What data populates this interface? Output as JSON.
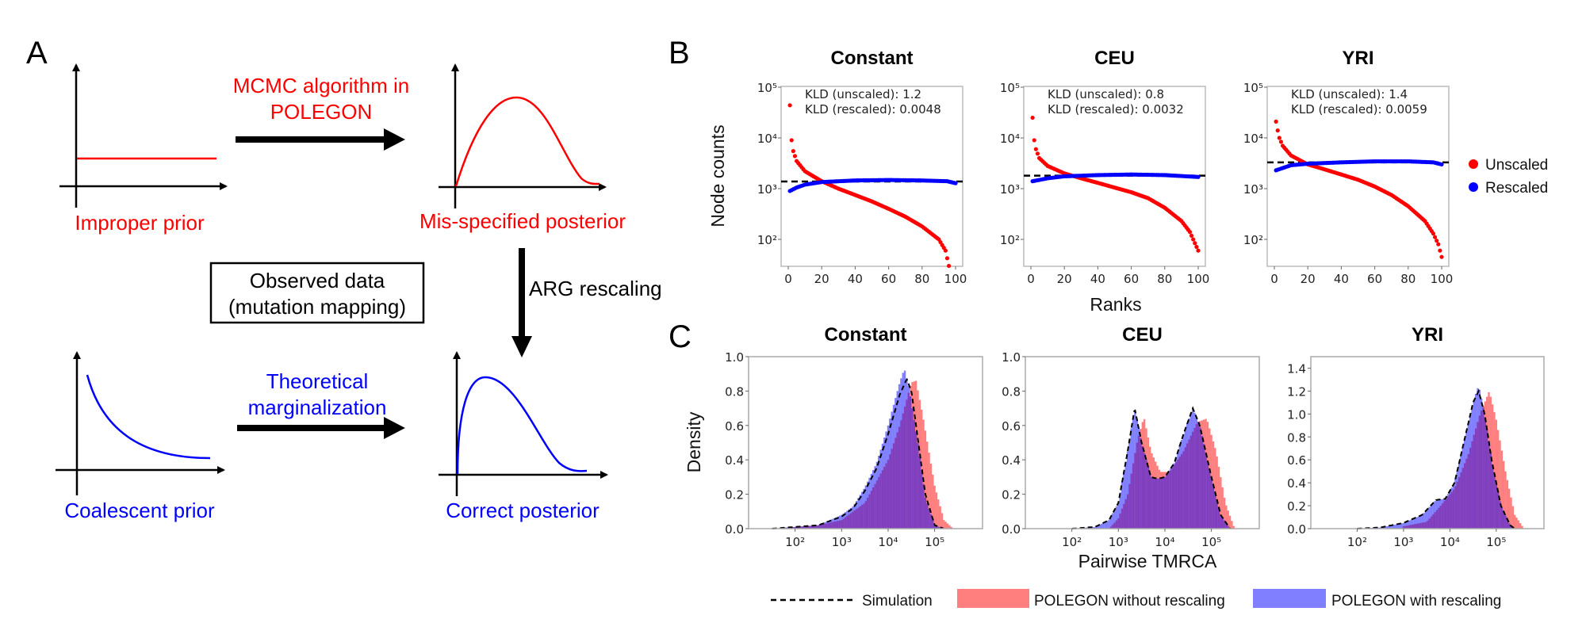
{
  "panel_labels": {
    "a": "A",
    "b": "B",
    "c": "C"
  },
  "colors": {
    "unscaled": "#ff0000",
    "rescaled": "#0000ff",
    "hist_unscaled": "#ff7f7f",
    "hist_rescaled": "#7f7fff",
    "simulation": "#000000"
  },
  "panel_a": {
    "improper_prior": "Improper prior",
    "mis_specified_posterior": "Mis-specified posterior",
    "coalescent_prior": "Coalescent prior",
    "correct_posterior": "Correct posterior",
    "mcmc_line1": "MCMC algorithm in",
    "mcmc_line2": "POLEGON",
    "theoretical_line1": "Theoretical",
    "theoretical_line2": "marginalization",
    "observed_line1": "Observed data",
    "observed_line2": "(mutation mapping)",
    "arg_rescaling": "ARG rescaling"
  },
  "panel_b": {
    "ylabel": "Node counts",
    "xlabel": "Ranks",
    "legend": [
      {
        "label": "Unscaled",
        "color": "#ff0000"
      },
      {
        "label": "Rescaled",
        "color": "#0000ff"
      }
    ]
  },
  "panel_c": {
    "ylabel": "Density",
    "xlabel": "Pairwise TMRCA",
    "legend": {
      "simulation": "Simulation",
      "without": "POLEGON without rescaling",
      "with": "POLEGON with rescaling"
    }
  },
  "chart_data": [
    {
      "type": "scatter",
      "title": "Constant",
      "yscale": "log",
      "xlim": [
        0,
        100
      ],
      "ylim": [
        30,
        100000
      ],
      "xticks": [
        "0",
        "20",
        "40",
        "60",
        "80",
        "100"
      ],
      "yticks": [
        "10²",
        "10³",
        "10⁴",
        "10⁵"
      ],
      "annotation": [
        "KLD (unscaled): 1.2",
        "KLD (rescaled): 0.0048"
      ],
      "reference_line": 1380,
      "series": [
        {
          "name": "Unscaled",
          "points": [
            [
              1,
              44000
            ],
            [
              2,
              9000
            ],
            [
              3,
              5500
            ],
            [
              5,
              3500
            ],
            [
              10,
              2200
            ],
            [
              20,
              1400
            ],
            [
              30,
              1000
            ],
            [
              40,
              750
            ],
            [
              50,
              560
            ],
            [
              60,
              400
            ],
            [
              70,
              280
            ],
            [
              80,
              180
            ],
            [
              90,
              100
            ],
            [
              94,
              60
            ],
            [
              96,
              30
            ]
          ]
        },
        {
          "name": "Rescaled",
          "points": [
            [
              1,
              900
            ],
            [
              5,
              1050
            ],
            [
              10,
              1200
            ],
            [
              20,
              1350
            ],
            [
              40,
              1450
            ],
            [
              60,
              1480
            ],
            [
              80,
              1450
            ],
            [
              95,
              1400
            ],
            [
              100,
              1280
            ]
          ]
        }
      ]
    },
    {
      "type": "scatter",
      "title": "CEU",
      "yscale": "log",
      "xlim": [
        0,
        100
      ],
      "ylim": [
        30,
        100000
      ],
      "xticks": [
        "0",
        "20",
        "40",
        "60",
        "80",
        "100"
      ],
      "yticks": [
        "10²",
        "10³",
        "10⁴",
        "10⁵"
      ],
      "annotation": [
        "KLD (unscaled): 0.8",
        "KLD (rescaled): 0.0032"
      ],
      "reference_line": 1800,
      "series": [
        {
          "name": "Unscaled",
          "points": [
            [
              1,
              25000
            ],
            [
              2,
              9000
            ],
            [
              3,
              6000
            ],
            [
              5,
              4000
            ],
            [
              10,
              2800
            ],
            [
              20,
              2000
            ],
            [
              30,
              1600
            ],
            [
              40,
              1300
            ],
            [
              50,
              1050
            ],
            [
              60,
              850
            ],
            [
              70,
              650
            ],
            [
              80,
              420
            ],
            [
              90,
              230
            ],
            [
              95,
              140
            ],
            [
              100,
              60
            ]
          ]
        },
        {
          "name": "Rescaled",
          "points": [
            [
              1,
              1400
            ],
            [
              10,
              1600
            ],
            [
              20,
              1750
            ],
            [
              40,
              1850
            ],
            [
              60,
              1900
            ],
            [
              80,
              1850
            ],
            [
              100,
              1700
            ]
          ]
        }
      ]
    },
    {
      "type": "scatter",
      "title": "YRI",
      "yscale": "log",
      "xlim": [
        0,
        100
      ],
      "ylim": [
        30,
        100000
      ],
      "xticks": [
        "0",
        "20",
        "40",
        "60",
        "80",
        "100"
      ],
      "yticks": [
        "10²",
        "10³",
        "10⁴",
        "10⁵"
      ],
      "annotation": [
        "KLD (unscaled): 1.4",
        "KLD (rescaled): 0.0059"
      ],
      "reference_line": 3300,
      "series": [
        {
          "name": "Unscaled",
          "points": [
            [
              1,
              21000
            ],
            [
              2,
              14000
            ],
            [
              3,
              10000
            ],
            [
              5,
              7000
            ],
            [
              10,
              4500
            ],
            [
              20,
              3000
            ],
            [
              30,
              2400
            ],
            [
              40,
              1900
            ],
            [
              50,
              1500
            ],
            [
              60,
              1100
            ],
            [
              70,
              750
            ],
            [
              80,
              450
            ],
            [
              90,
              230
            ],
            [
              95,
              130
            ],
            [
              98,
              80
            ],
            [
              100,
              45
            ]
          ]
        },
        {
          "name": "Rescaled",
          "points": [
            [
              1,
              2300
            ],
            [
              10,
              2900
            ],
            [
              20,
              3100
            ],
            [
              40,
              3300
            ],
            [
              60,
              3450
            ],
            [
              80,
              3450
            ],
            [
              95,
              3300
            ],
            [
              100,
              3000
            ]
          ]
        }
      ]
    },
    {
      "type": "histogram",
      "title": "Constant",
      "xscale": "log",
      "xlim": [
        10,
        1070000
      ],
      "ylim": [
        0,
        1.0
      ],
      "xticks": [
        "10²",
        "10³",
        "10⁴",
        "10⁵"
      ],
      "yticks": [
        "0.0",
        "0.2",
        "0.4",
        "0.6",
        "0.8",
        "1.0"
      ],
      "series": [
        {
          "name": "POLEGON without rescaling",
          "points": [
            [
              32,
              0
            ],
            [
              100,
              0.01
            ],
            [
              316,
              0.02
            ],
            [
              1000,
              0.05
            ],
            [
              3162,
              0.15
            ],
            [
              10000,
              0.4
            ],
            [
              17783,
              0.6
            ],
            [
              31623,
              0.85
            ],
            [
              39811,
              0.86
            ],
            [
              56234,
              0.65
            ],
            [
              100000,
              0.25
            ],
            [
              158489,
              0.05
            ],
            [
              251189,
              0
            ]
          ]
        },
        {
          "name": "POLEGON with rescaling",
          "points": [
            [
              32,
              0
            ],
            [
              100,
              0.01
            ],
            [
              316,
              0.02
            ],
            [
              1000,
              0.08
            ],
            [
              1778,
              0.13
            ],
            [
              3162,
              0.24
            ],
            [
              5623,
              0.38
            ],
            [
              10000,
              0.6
            ],
            [
              17783,
              0.85
            ],
            [
              22387,
              0.93
            ],
            [
              28184,
              0.82
            ],
            [
              44668,
              0.48
            ],
            [
              63096,
              0.18
            ],
            [
              100000,
              0.02
            ],
            [
              158489,
              0
            ]
          ]
        },
        {
          "name": "Simulation",
          "points": [
            [
              32,
              0
            ],
            [
              100,
              0.01
            ],
            [
              316,
              0.02
            ],
            [
              1000,
              0.07
            ],
            [
              1778,
              0.12
            ],
            [
              3162,
              0.22
            ],
            [
              5623,
              0.35
            ],
            [
              10000,
              0.55
            ],
            [
              17783,
              0.78
            ],
            [
              25119,
              0.87
            ],
            [
              31623,
              0.8
            ],
            [
              44668,
              0.5
            ],
            [
              63096,
              0.2
            ],
            [
              100000,
              0.02
            ],
            [
              158489,
              0
            ]
          ]
        }
      ]
    },
    {
      "type": "histogram",
      "title": "CEU",
      "xscale": "log",
      "xlim": [
        10,
        1070000
      ],
      "ylim": [
        0,
        1.0
      ],
      "xticks": [
        "10²",
        "10³",
        "10⁴",
        "10⁵"
      ],
      "yticks": [
        "0.0",
        "0.2",
        "0.4",
        "0.6",
        "0.8",
        "1.0"
      ],
      "series": [
        {
          "name": "POLEGON without rescaling",
          "points": [
            [
              631,
              0
            ],
            [
              1000,
              0.06
            ],
            [
              1585,
              0.2
            ],
            [
              2512,
              0.5
            ],
            [
              3548,
              0.65
            ],
            [
              5012,
              0.45
            ],
            [
              7943,
              0.33
            ],
            [
              12589,
              0.33
            ],
            [
              25119,
              0.45
            ],
            [
              50119,
              0.62
            ],
            [
              79433,
              0.64
            ],
            [
              125893,
              0.45
            ],
            [
              199526,
              0.15
            ],
            [
              316228,
              0
            ]
          ]
        },
        {
          "name": "POLEGON with rescaling",
          "points": [
            [
              100,
              0
            ],
            [
              316,
              0.01
            ],
            [
              631,
              0.05
            ],
            [
              1000,
              0.15
            ],
            [
              1585,
              0.45
            ],
            [
              2239,
              0.7
            ],
            [
              3162,
              0.5
            ],
            [
              5012,
              0.3
            ],
            [
              7079,
              0.29
            ],
            [
              10000,
              0.3
            ],
            [
              15849,
              0.38
            ],
            [
              25119,
              0.55
            ],
            [
              39811,
              0.7
            ],
            [
              56234,
              0.6
            ],
            [
              100000,
              0.3
            ],
            [
              158489,
              0.08
            ],
            [
              251189,
              0
            ]
          ]
        },
        {
          "name": "Simulation",
          "points": [
            [
              100,
              0
            ],
            [
              316,
              0.01
            ],
            [
              631,
              0.05
            ],
            [
              1000,
              0.15
            ],
            [
              1585,
              0.45
            ],
            [
              2239,
              0.7
            ],
            [
              3162,
              0.5
            ],
            [
              5012,
              0.3
            ],
            [
              7079,
              0.29
            ],
            [
              10000,
              0.3
            ],
            [
              15849,
              0.38
            ],
            [
              25119,
              0.55
            ],
            [
              39811,
              0.7
            ],
            [
              56234,
              0.6
            ],
            [
              100000,
              0.3
            ],
            [
              158489,
              0.08
            ],
            [
              251189,
              0
            ]
          ]
        }
      ]
    },
    {
      "type": "histogram",
      "title": "YRI",
      "xscale": "log",
      "xlim": [
        10,
        1070000
      ],
      "ylim": [
        0,
        1.5
      ],
      "xticks": [
        "10²",
        "10³",
        "10⁴",
        "10⁵"
      ],
      "yticks": [
        "0.0",
        "0.2",
        "0.4",
        "0.6",
        "0.8",
        "1.0",
        "1.2",
        "1.4"
      ],
      "series": [
        {
          "name": "POLEGON without rescaling",
          "points": [
            [
              1000,
              0.02
            ],
            [
              3162,
              0.06
            ],
            [
              6310,
              0.2
            ],
            [
              12589,
              0.35
            ],
            [
              25119,
              0.65
            ],
            [
              44668,
              1.0
            ],
            [
              70795,
              1.2
            ],
            [
              100000,
              0.95
            ],
            [
              158489,
              0.5
            ],
            [
              251189,
              0.12
            ],
            [
              398107,
              0
            ]
          ]
        },
        {
          "name": "POLEGON with rescaling",
          "points": [
            [
              100,
              0
            ],
            [
              316,
              0.01
            ],
            [
              1000,
              0.05
            ],
            [
              2512,
              0.12
            ],
            [
              5012,
              0.25
            ],
            [
              7943,
              0.26
            ],
            [
              12589,
              0.4
            ],
            [
              19953,
              0.75
            ],
            [
              31623,
              1.1
            ],
            [
              41687,
              1.25
            ],
            [
              56234,
              1.0
            ],
            [
              79433,
              0.6
            ],
            [
              125893,
              0.2
            ],
            [
              199526,
              0.03
            ],
            [
              251189,
              0
            ]
          ]
        },
        {
          "name": "Simulation",
          "points": [
            [
              100,
              0
            ],
            [
              316,
              0.01
            ],
            [
              1000,
              0.05
            ],
            [
              2512,
              0.12
            ],
            [
              5012,
              0.25
            ],
            [
              7943,
              0.26
            ],
            [
              12589,
              0.4
            ],
            [
              19953,
              0.75
            ],
            [
              31623,
              1.1
            ],
            [
              41687,
              1.2
            ],
            [
              56234,
              1.0
            ],
            [
              79433,
              0.6
            ],
            [
              125893,
              0.2
            ],
            [
              199526,
              0.03
            ],
            [
              251189,
              0
            ]
          ]
        }
      ]
    }
  ]
}
